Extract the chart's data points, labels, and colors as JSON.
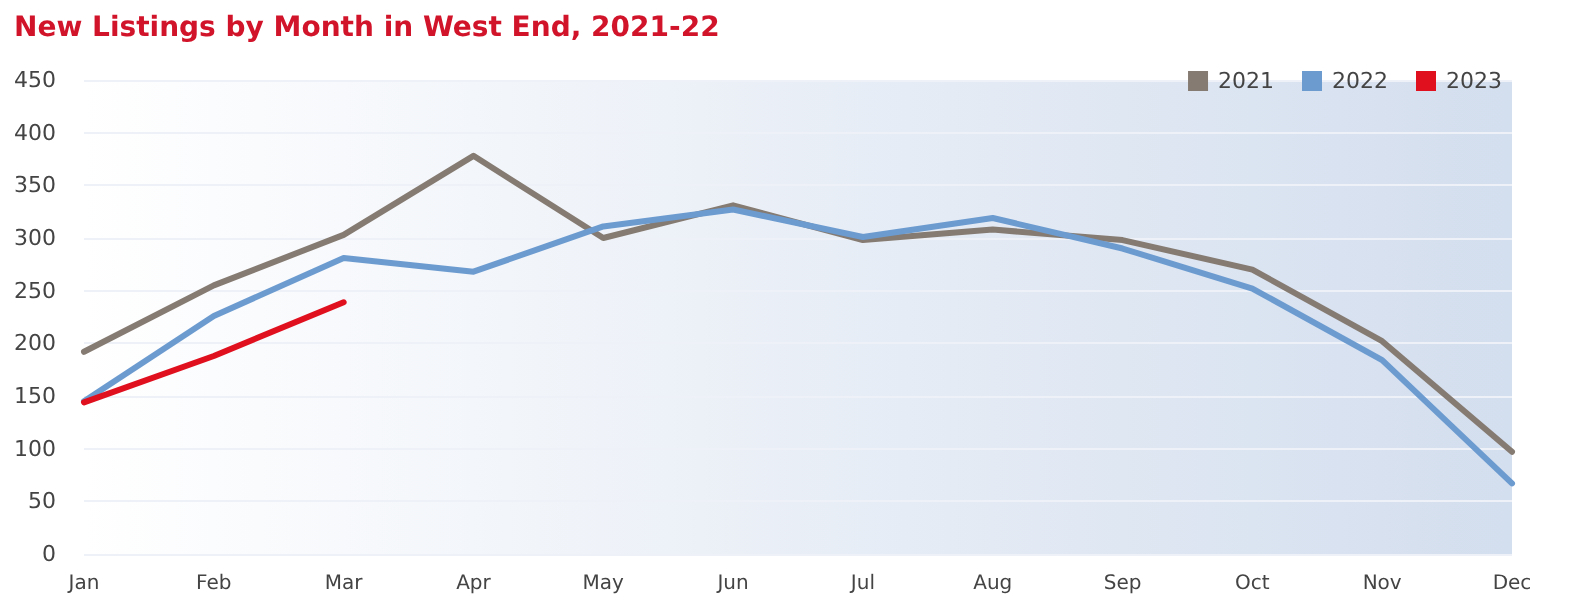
{
  "chart_data": {
    "type": "line",
    "title": "New Listings by Month in West End, 2021-22",
    "categories": [
      "Jan",
      "Feb",
      "Mar",
      "Apr",
      "May",
      "Jun",
      "Jul",
      "Aug",
      "Sep",
      "Oct",
      "Nov",
      "Dec"
    ],
    "series": [
      {
        "name": "2021",
        "color": "#857b72",
        "values": [
          192,
          255,
          303,
          378,
          300,
          331,
          298,
          308,
          298,
          270,
          202,
          97
        ]
      },
      {
        "name": "2022",
        "color": "#6c9bd0",
        "values": [
          145,
          226,
          281,
          268,
          311,
          327,
          301,
          319,
          290,
          252,
          184,
          67
        ]
      },
      {
        "name": "2023",
        "color": "#e0101f",
        "values": [
          144,
          188,
          239,
          null,
          null,
          null,
          null,
          null,
          null,
          null,
          null,
          null
        ]
      }
    ],
    "ylim": [
      0,
      450
    ],
    "yticks": [
      0,
      50,
      100,
      150,
      200,
      250,
      300,
      350,
      400,
      450
    ],
    "grid": "y",
    "legend": "top right",
    "marker": "none",
    "line_style": "solid"
  }
}
